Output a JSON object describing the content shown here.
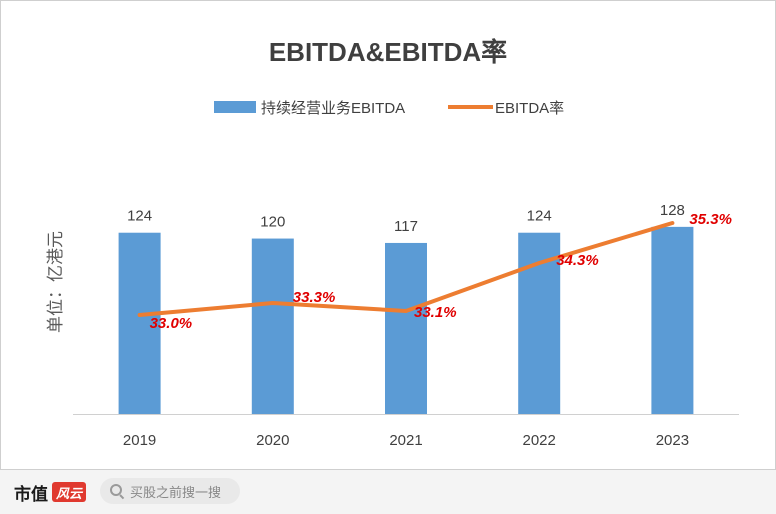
{
  "chart_data": {
    "type": "bar",
    "title": "EBITDA&EBITDA率",
    "ylabel": "单位：亿港元",
    "categories": [
      "2019",
      "2020",
      "2021",
      "2022",
      "2023"
    ],
    "series": [
      {
        "name": "持续经营业务EBITDA",
        "type": "bar",
        "values": [
          124,
          120,
          117,
          124,
          128
        ],
        "labels": [
          "124",
          "120",
          "117",
          "124",
          "128"
        ],
        "color": "#5b9bd5"
      },
      {
        "name": "EBITDA率",
        "type": "line",
        "values": [
          33.0,
          33.3,
          33.1,
          34.3,
          35.3
        ],
        "labels": [
          "33.0%",
          "33.3%",
          "33.1%",
          "34.3%",
          "35.3%"
        ],
        "color": "#ed7d31",
        "label_color": "#e00000"
      }
    ],
    "legend": "top",
    "grid": false
  },
  "footer": {
    "brand": "市值",
    "brand_logo": "风云",
    "search_placeholder": "买股之前搜一搜"
  }
}
